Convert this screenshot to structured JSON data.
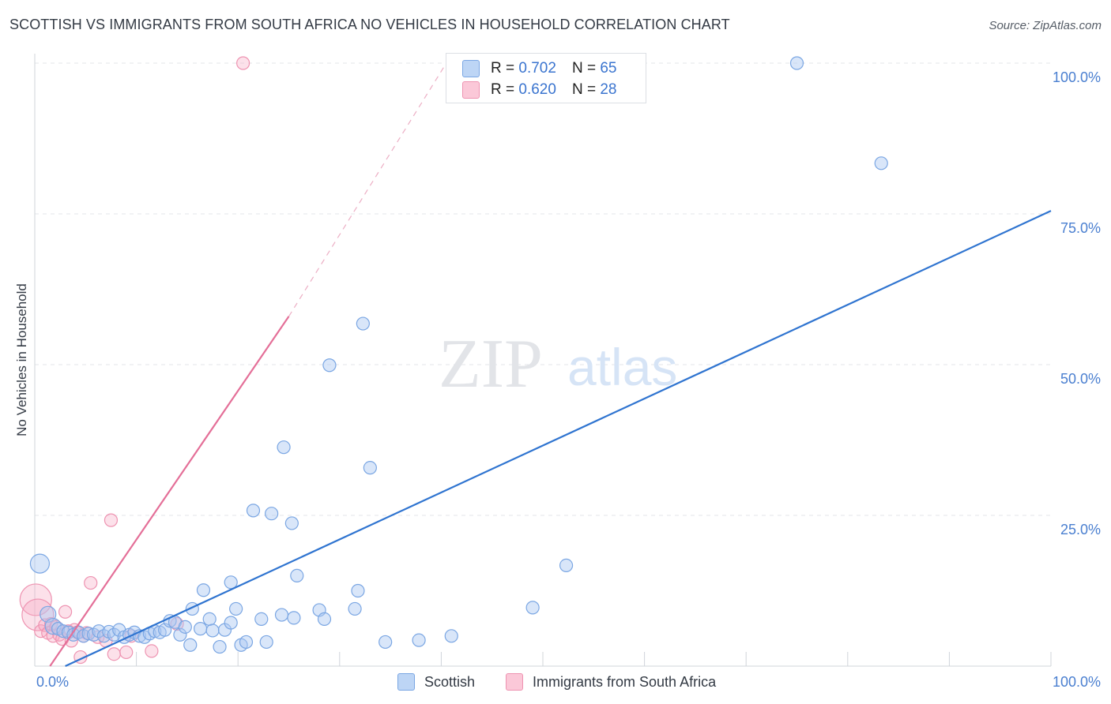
{
  "title": "SCOTTISH VS IMMIGRANTS FROM SOUTH AFRICA NO VEHICLES IN HOUSEHOLD CORRELATION CHART",
  "source": "Source: ZipAtlas.com",
  "watermark": {
    "zip": "ZIP",
    "atlas": "atlas"
  },
  "legend": {
    "r_label": "R =",
    "n_label": "N =",
    "rows": [
      {
        "name": "Scottish",
        "r": "0.702",
        "n": "65",
        "fill": "#bdd5f5",
        "stroke": "#7aa6e3"
      },
      {
        "name": "Immigrants from South Africa",
        "r": "0.620",
        "n": "28",
        "fill": "#fbc8d8",
        "stroke": "#ee93b1"
      }
    ]
  },
  "chart_data": {
    "type": "scatter",
    "title": "SCOTTISH VS IMMIGRANTS FROM SOUTH AFRICA NO VEHICLES IN HOUSEHOLD CORRELATION CHART",
    "xlabel": "",
    "ylabel": "No Vehicles in Household",
    "xlim": [
      0,
      100
    ],
    "ylim": [
      0,
      100
    ],
    "x_tick_labels": [
      "0.0%",
      "100.0%"
    ],
    "y_tick_labels": [
      "25.0%",
      "50.0%",
      "75.0%",
      "100.0%"
    ],
    "y_ticks": [
      25,
      50,
      75,
      100
    ],
    "grid": true,
    "series": [
      {
        "name": "Scottish",
        "color": "#5b8fd6",
        "points": [
          [
            0.5,
            17
          ],
          [
            1.3,
            8.6
          ],
          [
            1.8,
            6.6
          ],
          [
            2.3,
            6.2
          ],
          [
            2.8,
            5.8
          ],
          [
            3.3,
            5.6
          ],
          [
            3.8,
            5.2
          ],
          [
            4.3,
            5.6
          ],
          [
            4.8,
            5.0
          ],
          [
            5.3,
            5.4
          ],
          [
            5.8,
            5.2
          ],
          [
            6.3,
            5.8
          ],
          [
            6.8,
            5.0
          ],
          [
            7.3,
            5.7
          ],
          [
            7.8,
            5.2
          ],
          [
            8.3,
            6.0
          ],
          [
            8.8,
            4.8
          ],
          [
            9.3,
            5.2
          ],
          [
            9.8,
            5.6
          ],
          [
            10.3,
            5.0
          ],
          [
            10.8,
            4.8
          ],
          [
            11.3,
            5.4
          ],
          [
            11.8,
            5.8
          ],
          [
            12.3,
            5.6
          ],
          [
            12.8,
            6.0
          ],
          [
            13.3,
            7.5
          ],
          [
            13.8,
            7.3
          ],
          [
            14.3,
            5.2
          ],
          [
            14.8,
            6.5
          ],
          [
            15.3,
            3.5
          ],
          [
            15.5,
            9.5
          ],
          [
            16.3,
            6.2
          ],
          [
            16.6,
            12.6
          ],
          [
            17.2,
            7.8
          ],
          [
            17.5,
            5.9
          ],
          [
            18.2,
            3.2
          ],
          [
            18.7,
            6.0
          ],
          [
            19.3,
            7.2
          ],
          [
            19.3,
            13.9
          ],
          [
            19.8,
            9.5
          ],
          [
            20.3,
            3.5
          ],
          [
            20.8,
            4.0
          ],
          [
            21.5,
            25.8
          ],
          [
            22.3,
            7.8
          ],
          [
            22.8,
            4.0
          ],
          [
            23.3,
            25.3
          ],
          [
            24.3,
            8.5
          ],
          [
            24.5,
            36.3
          ],
          [
            25.3,
            23.7
          ],
          [
            25.5,
            8.0
          ],
          [
            25.8,
            15.0
          ],
          [
            28.0,
            9.3
          ],
          [
            28.5,
            7.8
          ],
          [
            29.0,
            49.9
          ],
          [
            31.5,
            9.5
          ],
          [
            31.8,
            12.5
          ],
          [
            32.3,
            56.8
          ],
          [
            33.0,
            32.9
          ],
          [
            34.5,
            4.0
          ],
          [
            37.8,
            4.3
          ],
          [
            41.0,
            5.0
          ],
          [
            49.0,
            9.7
          ],
          [
            52.3,
            16.7
          ],
          [
            75.0,
            100
          ],
          [
            83.3,
            83.4
          ]
        ],
        "regression": {
          "x": [
            3.0,
            100.0
          ],
          "y": [
            0.0,
            75.5
          ]
        }
      },
      {
        "name": "Immigrants from South Africa",
        "color": "#e8789f",
        "points": [
          [
            0.1,
            11.0
          ],
          [
            0.3,
            8.5
          ],
          [
            0.6,
            5.8
          ],
          [
            1.0,
            6.8
          ],
          [
            1.3,
            5.5
          ],
          [
            1.6,
            7.0
          ],
          [
            1.8,
            5.0
          ],
          [
            2.1,
            6.5
          ],
          [
            2.4,
            5.2
          ],
          [
            2.7,
            4.5
          ],
          [
            3.0,
            9.0
          ],
          [
            3.3,
            5.8
          ],
          [
            3.6,
            4.2
          ],
          [
            3.9,
            6.0
          ],
          [
            4.2,
            5.6
          ],
          [
            4.5,
            1.5
          ],
          [
            4.8,
            5.0
          ],
          [
            5.1,
            5.5
          ],
          [
            5.5,
            13.8
          ],
          [
            6.2,
            4.8
          ],
          [
            7.0,
            4.2
          ],
          [
            7.5,
            24.2
          ],
          [
            7.8,
            2.0
          ],
          [
            9.0,
            2.3
          ],
          [
            9.5,
            5.0
          ],
          [
            11.5,
            2.5
          ],
          [
            14.0,
            7.0
          ],
          [
            20.5,
            100
          ]
        ],
        "regression": {
          "x": [
            1.5,
            25.0
          ],
          "y": [
            0.0,
            58.0
          ]
        },
        "regression_extrapolated": {
          "x": [
            25.0,
            40.5
          ],
          "y": [
            58.0,
            100.0
          ]
        }
      }
    ]
  }
}
